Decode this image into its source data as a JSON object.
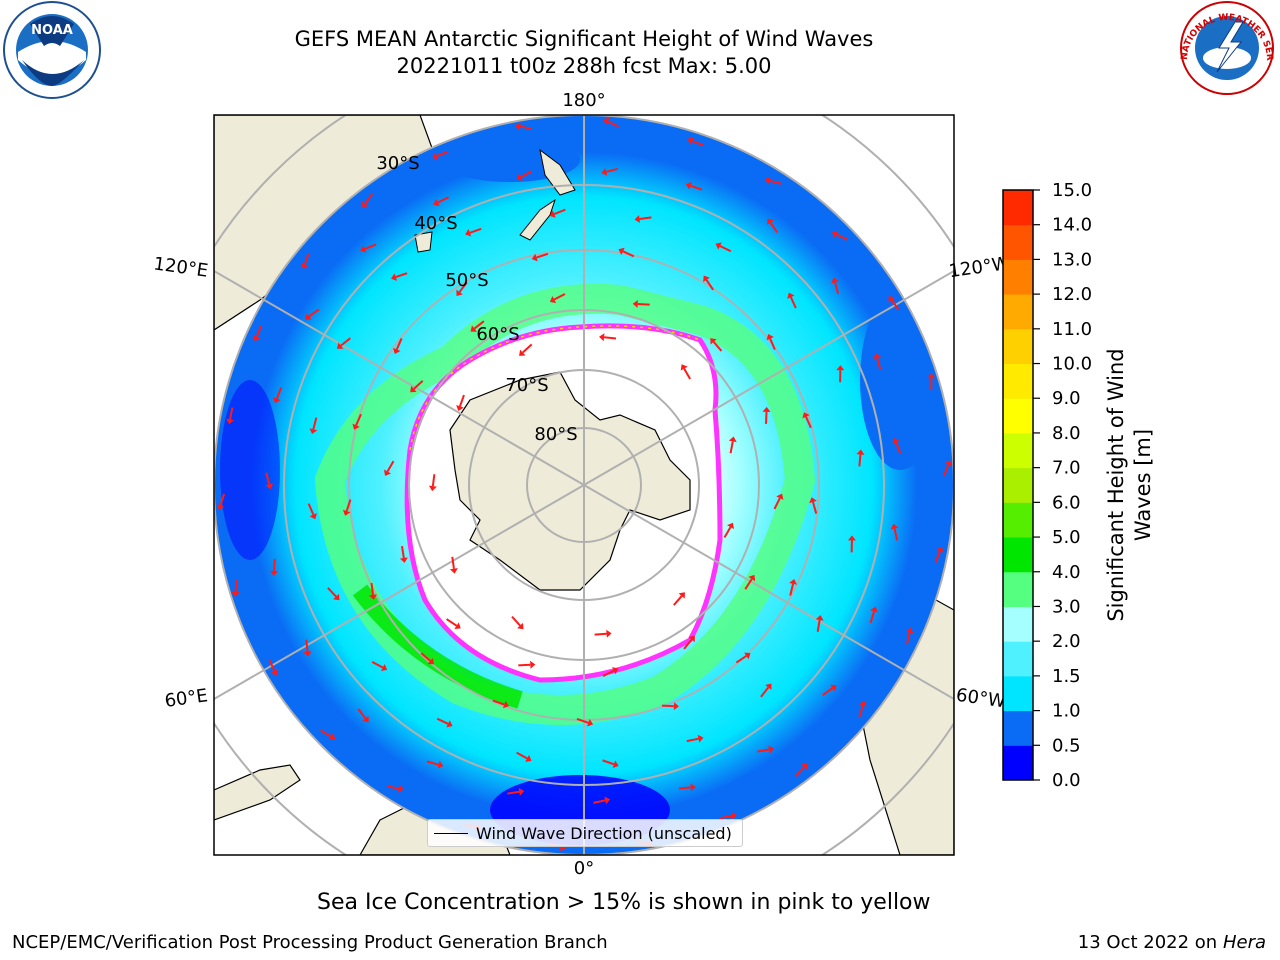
{
  "title": {
    "line1": "GEFS MEAN Antarctic Significant Height of Wind Waves",
    "line2": "20221011 t00z 288h fcst   Max: 5.00"
  },
  "logos": {
    "noaa": {
      "text": "NOAA",
      "icon": "noaa-logo-icon"
    },
    "nws": {
      "text": "NATIONAL WEATHER SERVICE",
      "icon": "nws-logo-icon"
    }
  },
  "map": {
    "longitude_labels": [
      "180°",
      "120°E",
      "120°W",
      "60°E",
      "60°W",
      "0°"
    ],
    "latitude_labels": [
      "30°S",
      "40°S",
      "50°S",
      "60°S",
      "70°S",
      "80°S"
    ],
    "legend_label": "Wind Wave Direction (unscaled)",
    "colors": {
      "land": "#efebd9",
      "ice_interior": "#ffffff",
      "ice_edge": "#ff33ff",
      "arrow": "#ff1a1a",
      "grid": "#b0b0b0"
    }
  },
  "colorbar": {
    "label_line1": "Significant Height of Wind",
    "label_line2": "Waves [m]",
    "ticks": [
      "0.0",
      "0.5",
      "1.0",
      "1.5",
      "2.0",
      "3.0",
      "4.0",
      "5.0",
      "6.0",
      "7.0",
      "8.0",
      "9.0",
      "10.0",
      "11.0",
      "12.0",
      "13.0",
      "14.0",
      "15.0"
    ],
    "colors": [
      "#0000ff",
      "#0a6cf5",
      "#00e5ff",
      "#4ff0ff",
      "#a6ffff",
      "#55ff7f",
      "#00e600",
      "#55ee00",
      "#aaee00",
      "#ccff00",
      "#ffff00",
      "#ffea00",
      "#ffd000",
      "#ffaa00",
      "#ff8000",
      "#ff5500",
      "#ff2a00"
    ]
  },
  "footer": {
    "note": "Sea Ice Concentration > 15% is shown in pink to yellow",
    "credit_left": "NCEP/EMC/Verification Post Processing Product Generation Branch",
    "credit_right_date": "13 Oct 2022 on ",
    "credit_right_machine": "Hera"
  }
}
